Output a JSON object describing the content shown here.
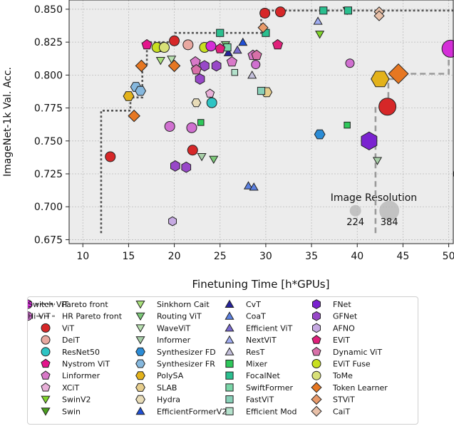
{
  "chart_data": {
    "type": "scatter",
    "title": "",
    "xlabel": "Finetuning Time [h*GPUs]",
    "ylabel": "ImageNet-1k Val. Acc.",
    "xlim": [
      8.5,
      50.5
    ],
    "ylim": [
      0.672,
      0.857
    ],
    "xticks": [
      10,
      15,
      20,
      25,
      30,
      35,
      40,
      45,
      50
    ],
    "xtick_labels": [
      "10",
      "15",
      "20",
      "25",
      "30",
      "35",
      "40",
      "45",
      "50"
    ],
    "yticks": [
      0.675,
      0.7,
      0.725,
      0.75,
      0.775,
      0.8,
      0.825,
      0.85
    ],
    "ytick_labels": [
      "0.675",
      "0.700",
      "0.725",
      "0.750",
      "0.775",
      "0.800",
      "0.825",
      "0.850"
    ],
    "grid": true,
    "pareto_front": {
      "name": "Pareto front",
      "x": [
        12,
        12,
        15.2,
        15.2,
        16.5,
        16.5,
        17.0,
        17.0,
        20.1,
        20.1,
        29.5,
        29.5,
        52
      ],
      "y": [
        0.68,
        0.773,
        0.773,
        0.783,
        0.783,
        0.807,
        0.807,
        0.825,
        0.825,
        0.832,
        0.832,
        0.849,
        0.849
      ]
    },
    "hr_pareto_front": {
      "name": "HR Pareto front",
      "x": [
        42,
        42,
        43.4,
        43.4,
        44.5,
        44.5,
        50.0,
        50.0
      ],
      "y": [
        0.68,
        0.776,
        0.776,
        0.797,
        0.797,
        0.801,
        0.801,
        0.82
      ]
    },
    "resolution_annotation": {
      "title": "Image Resolution",
      "labels": [
        "224",
        "384"
      ],
      "x": [
        39.8,
        43.5
      ],
      "y": [
        0.697,
        0.697
      ]
    },
    "legend_title": "",
    "legend_location": "bottom",
    "legend": [
      {
        "label": "Pareto front",
        "shape": "line-dotted",
        "color": "#555555"
      },
      {
        "label": "HR Pareto front",
        "shape": "line-dashed",
        "color": "#999999"
      },
      {
        "label": "ViT",
        "shape": "circle",
        "color": "#d62728"
      },
      {
        "label": "DeiT",
        "shape": "circle",
        "color": "#e8a8a0"
      },
      {
        "label": "ResNet50",
        "shape": "circle",
        "color": "#2ec4c4"
      },
      {
        "label": "Nystrom ViT",
        "shape": "pentagon",
        "color": "#e4148c"
      },
      {
        "label": "Linformer",
        "shape": "pentagon",
        "color": "#d879c8"
      },
      {
        "label": "XCiT",
        "shape": "pentagon",
        "color": "#e8b0d8"
      },
      {
        "label": "SwinV2",
        "shape": "tri-down",
        "color": "#7fd42a"
      },
      {
        "label": "Swin",
        "shape": "tri-down",
        "color": "#4aa01e"
      },
      {
        "label": "Sinkhorn Cait",
        "shape": "tri-down",
        "color": "#a8e07a"
      },
      {
        "label": "Routing ViT",
        "shape": "tri-down",
        "color": "#7cc878"
      },
      {
        "label": "WaveViT",
        "shape": "tri-down",
        "color": "#b8e0b0"
      },
      {
        "label": "Informer",
        "shape": "tri-down",
        "color": "#a8cfa8"
      },
      {
        "label": "Synthesizer FD",
        "shape": "hexagon",
        "color": "#2b8cd6"
      },
      {
        "label": "Synthesizer FR",
        "shape": "hexagon",
        "color": "#86b8de"
      },
      {
        "label": "PolySA",
        "shape": "hexagon",
        "color": "#e3b21b"
      },
      {
        "label": "SLAB",
        "shape": "hexagon",
        "color": "#e6cd8c"
      },
      {
        "label": "Hydra",
        "shape": "hexagon",
        "color": "#e8dcb8"
      },
      {
        "label": "EfficientFormerV2",
        "shape": "tri-up",
        "color": "#1f4fd6"
      },
      {
        "label": "CvT",
        "shape": "tri-up",
        "color": "#26229c"
      },
      {
        "label": "CoaT",
        "shape": "tri-up",
        "color": "#5b80e0"
      },
      {
        "label": "Efficient ViT",
        "shape": "tri-up",
        "color": "#7a6ad0"
      },
      {
        "label": "NextViT",
        "shape": "tri-up",
        "color": "#a0acf0"
      },
      {
        "label": "ResT",
        "shape": "tri-up",
        "color": "#c4c0dc"
      },
      {
        "label": "Mixer",
        "shape": "square",
        "color": "#2ec85a"
      },
      {
        "label": "FocalNet",
        "shape": "square",
        "color": "#2bbf8f"
      },
      {
        "label": "SwiftFormer",
        "shape": "square",
        "color": "#7ad6a8"
      },
      {
        "label": "FastViT",
        "shape": "square",
        "color": "#88d0b8"
      },
      {
        "label": "Efficient Mod",
        "shape": "square",
        "color": "#b4e2cc"
      },
      {
        "label": "FNet",
        "shape": "hexagon-v",
        "color": "#7a22d0"
      },
      {
        "label": "GFNet",
        "shape": "hexagon-v",
        "color": "#9848c8"
      },
      {
        "label": "AFNO",
        "shape": "hexagon-v",
        "color": "#c6aae2"
      },
      {
        "label": "EViT",
        "shape": "pentagon",
        "color": "#e0207a"
      },
      {
        "label": "Dynamic ViT",
        "shape": "pentagon",
        "color": "#d870a8"
      },
      {
        "label": "EViT Fuse",
        "shape": "circle",
        "color": "#c8e020"
      },
      {
        "label": "ToMe",
        "shape": "circle",
        "color": "#d8e078"
      },
      {
        "label": "Token Learner",
        "shape": "diamond",
        "color": "#e67722"
      },
      {
        "label": "STViT",
        "shape": "diamond",
        "color": "#e89a6a"
      },
      {
        "label": "CaiT",
        "shape": "diamond",
        "color": "#e8c0a8"
      },
      {
        "label": "Switch ViT",
        "shape": "circle",
        "color": "#d42ed8"
      },
      {
        "label": "Hi ViT",
        "shape": "circle",
        "color": "#d070d0"
      }
    ],
    "series": [
      {
        "name": "ViT",
        "shape": "circle",
        "color": "#d62728",
        "x": [
          13,
          22,
          29.9,
          31.6,
          43.3,
          20.0
        ],
        "y": [
          0.738,
          0.743,
          0.847,
          0.848,
          0.776,
          0.826
        ],
        "size": [
          7,
          7,
          7,
          7,
          12,
          7
        ]
      },
      {
        "name": "DeiT",
        "shape": "circle",
        "color": "#e8a8a0",
        "x": [
          21.5
        ],
        "y": [
          0.823
        ],
        "size": [
          7
        ]
      },
      {
        "name": "ResNet50",
        "shape": "circle",
        "color": "#2ec4c4",
        "x": [
          24.1
        ],
        "y": [
          0.779
        ],
        "size": [
          7
        ]
      },
      {
        "name": "Nystrom ViT",
        "shape": "pentagon",
        "color": "#e4148c",
        "x": [
          17.0
        ],
        "y": [
          0.823
        ],
        "size": [
          7
        ]
      },
      {
        "name": "Linformer",
        "shape": "pentagon",
        "color": "#d879c8",
        "x": [
          22.3,
          26.3,
          28.6
        ],
        "y": [
          0.81,
          0.81,
          0.815
        ],
        "size": [
          7,
          7,
          7
        ]
      },
      {
        "name": "XCiT",
        "shape": "pentagon",
        "color": "#e8b0d8",
        "x": [
          23.9
        ],
        "y": [
          0.786
        ],
        "size": [
          6
        ]
      },
      {
        "name": "SwinV2",
        "shape": "tri-down",
        "color": "#7fd42a",
        "x": [
          35.9
        ],
        "y": [
          0.831
        ],
        "size": [
          6
        ]
      },
      {
        "name": "Swin",
        "shape": "tri-down",
        "color": "#4aa01e",
        "x": [
          38.9
        ],
        "y": [
          0.849
        ],
        "size": [
          6
        ]
      },
      {
        "name": "Sinkhorn Cait",
        "shape": "tri-down",
        "color": "#a8e07a",
        "x": [
          18.5
        ],
        "y": [
          0.811
        ],
        "size": [
          6
        ]
      },
      {
        "name": "Routing ViT",
        "shape": "tri-down",
        "color": "#7cc878",
        "x": [
          24.3,
          25.6
        ],
        "y": [
          0.736,
          0.823
        ],
        "size": [
          6,
          6
        ]
      },
      {
        "name": "WaveViT",
        "shape": "tri-down",
        "color": "#b8e0b0",
        "x": [
          19.7
        ],
        "y": [
          0.812
        ],
        "size": [
          6
        ]
      },
      {
        "name": "Informer",
        "shape": "tri-down",
        "color": "#a8cfa8",
        "x": [
          23.0,
          42.2
        ],
        "y": [
          0.738,
          0.735
        ],
        "size": [
          6,
          6
        ]
      },
      {
        "name": "Synthesizer FD",
        "shape": "hexagon",
        "color": "#2b8cd6",
        "x": [
          35.9
        ],
        "y": [
          0.755
        ],
        "size": [
          7
        ]
      },
      {
        "name": "Synthesizer FR",
        "shape": "hexagon",
        "color": "#86b8de",
        "x": [
          15.8,
          16.3
        ],
        "y": [
          0.791,
          0.788
        ],
        "size": [
          7,
          7
        ]
      },
      {
        "name": "PolySA",
        "shape": "hexagon",
        "color": "#e3b21b",
        "x": [
          15.0,
          42.5
        ],
        "y": [
          0.784,
          0.797
        ],
        "size": [
          7,
          12
        ]
      },
      {
        "name": "SLAB",
        "shape": "hexagon",
        "color": "#e6cd8c",
        "x": [
          30.1
        ],
        "y": [
          0.787
        ],
        "size": [
          7
        ]
      },
      {
        "name": "Hydra",
        "shape": "hexagon",
        "color": "#e8dcb8",
        "x": [
          22.4
        ],
        "y": [
          0.779
        ],
        "size": [
          6
        ]
      },
      {
        "name": "EfficientFormerV2",
        "shape": "tri-up",
        "color": "#1f4fd6",
        "x": [
          27.5
        ],
        "y": [
          0.825
        ],
        "size": [
          6
        ]
      },
      {
        "name": "CvT",
        "shape": "tri-up",
        "color": "#26229c",
        "x": [
          25.9
        ],
        "y": [
          0.817
        ],
        "size": [
          6
        ]
      },
      {
        "name": "CoaT",
        "shape": "tri-up",
        "color": "#5b80e0",
        "x": [
          28.1,
          28.7
        ],
        "y": [
          0.716,
          0.715
        ],
        "size": [
          6,
          6
        ]
      },
      {
        "name": "Efficient ViT",
        "shape": "tri-up",
        "color": "#7a6ad0",
        "x": [
          26.9
        ],
        "y": [
          0.819
        ],
        "size": [
          6
        ]
      },
      {
        "name": "NextViT",
        "shape": "tri-up",
        "color": "#a0acf0",
        "x": [
          35.7
        ],
        "y": [
          0.841
        ],
        "size": [
          6
        ]
      },
      {
        "name": "ResT",
        "shape": "tri-up",
        "color": "#c4c0dc",
        "x": [
          28.5
        ],
        "y": [
          0.8
        ],
        "size": [
          6
        ]
      },
      {
        "name": "Mixer",
        "shape": "square",
        "color": "#2ec85a",
        "x": [
          22.9,
          38.9
        ],
        "y": [
          0.764,
          0.762
        ],
        "size": [
          5,
          5
        ]
      },
      {
        "name": "FocalNet",
        "shape": "square",
        "color": "#2bbf8f",
        "x": [
          25.0,
          30.0,
          39.0,
          36.3
        ],
        "y": [
          0.832,
          0.832,
          0.849,
          0.849
        ],
        "size": [
          6,
          6,
          6,
          6
        ]
      },
      {
        "name": "SwiftFormer",
        "shape": "square",
        "color": "#7ad6a8",
        "x": [
          25.8
        ],
        "y": [
          0.821
        ],
        "size": [
          6
        ]
      },
      {
        "name": "FastViT",
        "shape": "square",
        "color": "#88d0b8",
        "x": [
          29.5
        ],
        "y": [
          0.788
        ],
        "size": [
          6
        ]
      },
      {
        "name": "Efficient Mod",
        "shape": "square",
        "color": "#b4e2cc",
        "x": [
          26.6
        ],
        "y": [
          0.802
        ],
        "size": [
          5
        ]
      },
      {
        "name": "FNet",
        "shape": "hexagon-v",
        "color": "#7a22d0",
        "x": [
          41.3
        ],
        "y": [
          0.75
        ],
        "size": [
          12
        ]
      },
      {
        "name": "GFNet",
        "shape": "hexagon-v",
        "color": "#9848c8",
        "x": [
          20.1,
          21.3,
          23.3,
          24.6,
          22.8
        ],
        "y": [
          0.731,
          0.73,
          0.807,
          0.807,
          0.797
        ],
        "size": [
          7,
          7,
          7,
          7,
          7
        ]
      },
      {
        "name": "AFNO",
        "shape": "hexagon-v",
        "color": "#c6aae2",
        "x": [
          19.8,
          51.0
        ],
        "y": [
          0.689,
          0.725
        ],
        "size": [
          6,
          6
        ]
      },
      {
        "name": "EViT",
        "shape": "pentagon",
        "color": "#e0207a",
        "x": [
          25.0,
          31.3,
          18.7
        ],
        "y": [
          0.82,
          0.823,
          0.821
        ],
        "size": [
          7,
          7,
          7
        ]
      },
      {
        "name": "Dynamic ViT",
        "shape": "pentagon",
        "color": "#d870a8",
        "x": [
          22.4,
          29.0
        ],
        "y": [
          0.804,
          0.815
        ],
        "size": [
          7,
          7
        ]
      },
      {
        "name": "EViT Fuse",
        "shape": "circle",
        "color": "#c8e020",
        "x": [
          18.1,
          23.3
        ],
        "y": [
          0.821,
          0.821
        ],
        "size": [
          7,
          7
        ]
      },
      {
        "name": "ToMe",
        "shape": "circle",
        "color": "#d8e078",
        "x": [
          18.9
        ],
        "y": [
          0.821
        ],
        "size": [
          7
        ]
      },
      {
        "name": "Token Learner",
        "shape": "diamond",
        "color": "#e67722",
        "x": [
          15.6,
          16.4,
          20.0,
          44.5
        ],
        "y": [
          0.769,
          0.807,
          0.807,
          0.801
        ],
        "size": [
          7,
          7,
          7,
          12
        ]
      },
      {
        "name": "STViT",
        "shape": "diamond",
        "color": "#e89a6a",
        "x": [
          29.7
        ],
        "y": [
          0.836
        ],
        "size": [
          6
        ]
      },
      {
        "name": "CaiT",
        "shape": "diamond",
        "color": "#e8c0a8",
        "x": [
          42.4,
          42.4
        ],
        "y": [
          0.848,
          0.845
        ],
        "size": [
          6,
          6
        ]
      },
      {
        "name": "Switch ViT",
        "shape": "circle",
        "color": "#d42ed8",
        "x": [
          24.0,
          50.2
        ],
        "y": [
          0.822,
          0.82
        ],
        "size": [
          7,
          12
        ]
      },
      {
        "name": "Hi ViT",
        "shape": "circle",
        "color": "#d070d0",
        "x": [
          19.5,
          21.9,
          28.9,
          39.2
        ],
        "y": [
          0.761,
          0.76,
          0.808,
          0.809
        ],
        "size": [
          7,
          7,
          6,
          6
        ]
      }
    ]
  }
}
